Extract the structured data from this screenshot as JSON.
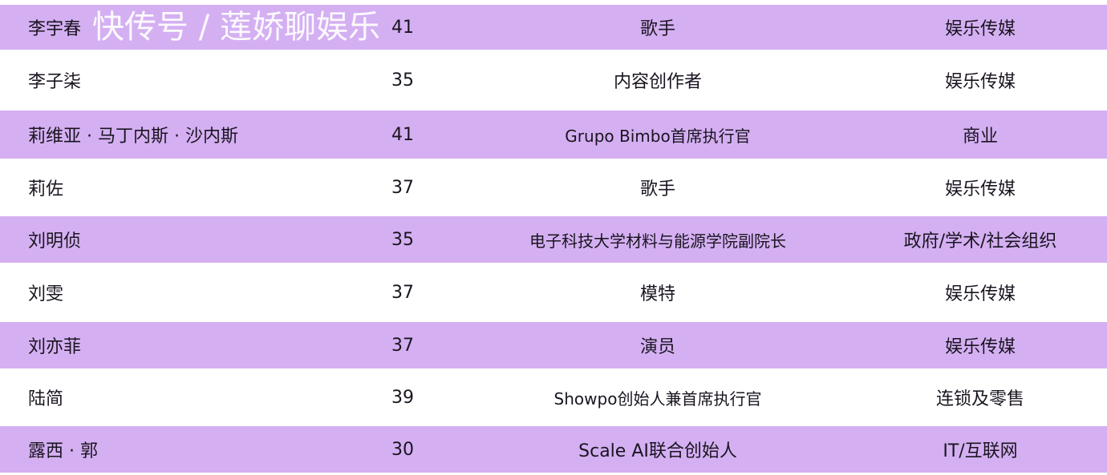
{
  "rows": [
    {
      "name": "李宇春",
      "age": "41",
      "title": "歌手",
      "industry": "娱乐传媒"
    },
    {
      "name": "李子柒",
      "age": "35",
      "title": "内容创作者",
      "industry": "娱乐传媒"
    },
    {
      "name": "莉维亚 · 马丁内斯 · 沙内斯",
      "age": "41",
      "title": "Grupo Bimbo首席执行官",
      "industry": "商业"
    },
    {
      "name": "莉佐",
      "age": "37",
      "title": "歌手",
      "industry": "娱乐传媒"
    },
    {
      "name": "刘明侦",
      "age": "35",
      "title": "电子科技大学材料与能源学院副院长",
      "industry": "政府/学术/社会组织"
    },
    {
      "name": "刘雯",
      "age": "37",
      "title": "模特",
      "industry": "娱乐传媒"
    },
    {
      "name": "刘亦菲",
      "age": "37",
      "title": "演员",
      "industry": "娱乐传媒"
    },
    {
      "name": "陆简",
      "age": "39",
      "title": "Showpo创始人兼首席执行官",
      "industry": "连锁及零售"
    },
    {
      "name": "露西 · 郭",
      "age": "30",
      "title": "Scale AI联合创始人",
      "industry": "IT/互联网"
    }
  ],
  "watermark": "快传号 / 莲娇聊娱乐",
  "colors": {
    "row_alt": "#d4b0f2",
    "row": "#ffffff"
  }
}
